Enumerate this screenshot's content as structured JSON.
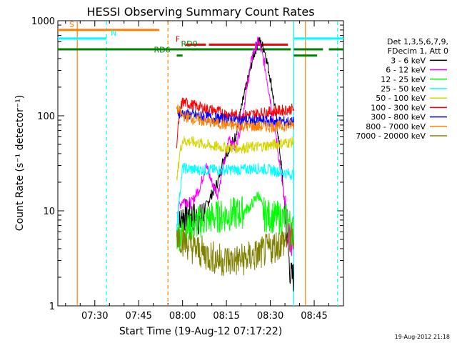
{
  "chart_data": {
    "type": "line",
    "title": "HESSI Observing Summary Count Rates",
    "xlabel": "Start Time (19-Aug-12 07:17:22)",
    "ylabel": "Count Rate (s⁻¹ detector⁻¹)",
    "yscale": "log",
    "xlim": [
      "07:17:22",
      "08:55:00"
    ],
    "ylim": [
      1,
      1000
    ],
    "x_ticks": [
      "07:30",
      "07:45",
      "08:00",
      "08:15",
      "08:30",
      "08:45"
    ],
    "y_ticks": [
      "1",
      "10",
      "100",
      "1000"
    ],
    "grid": false,
    "legend": {
      "position": "right",
      "header": [
        "Det 1,3,5,6,7,9,",
        "FDecim 1, Att 0"
      ],
      "entries": [
        {
          "label": "3 - 6 keV",
          "color": "#000000"
        },
        {
          "label": "6 - 12 keV",
          "color": "#ff00ff"
        },
        {
          "label": "12 - 25 keV",
          "color": "#00ff00"
        },
        {
          "label": "25 - 50 keV",
          "color": "#00ffff"
        },
        {
          "label": "50 - 100 keV",
          "color": "#d4d400"
        },
        {
          "label": "100 - 300 keV",
          "color": "#ff0000"
        },
        {
          "label": "300 - 800 keV",
          "color": "#0000ff"
        },
        {
          "label": "800 - 7000 keV",
          "color": "#ff8000"
        },
        {
          "label": "7000 - 20000 keV",
          "color": "#808000"
        }
      ]
    },
    "data_window": [
      "07:58",
      "08:38"
    ],
    "series": [
      {
        "name": "3 - 6 keV",
        "color": "#000000",
        "x": [
          "07:58",
          "08:00",
          "08:03",
          "08:06",
          "08:09",
          "08:12",
          "08:14",
          "08:18",
          "08:21",
          "08:24",
          "08:26",
          "08:28",
          "08:30",
          "08:32",
          "08:34",
          "08:36",
          "08:37",
          "08:38"
        ],
        "y": [
          6,
          9,
          9,
          8,
          13,
          20,
          35,
          60,
          160,
          400,
          630,
          500,
          250,
          100,
          25,
          4,
          2,
          2
        ]
      },
      {
        "name": "6 - 12 keV",
        "color": "#ff00ff",
        "x": [
          "07:58",
          "08:00",
          "08:03",
          "08:06",
          "08:08",
          "08:10",
          "08:12",
          "08:14",
          "08:16",
          "08:18",
          "08:20",
          "08:22",
          "08:24",
          "08:26",
          "08:28",
          "08:30",
          "08:32",
          "08:34",
          "08:36",
          "08:38"
        ],
        "y": [
          10,
          13,
          12,
          18,
          30,
          20,
          15,
          30,
          60,
          45,
          80,
          200,
          450,
          620,
          350,
          150,
          60,
          20,
          6,
          4
        ]
      },
      {
        "name": "12 - 25 keV",
        "color": "#00ff00",
        "x": [
          "07:58",
          "08:00",
          "08:05",
          "08:10",
          "08:15",
          "08:20",
          "08:23",
          "08:26",
          "08:28",
          "08:32",
          "08:36",
          "08:38"
        ],
        "y": [
          5.5,
          6,
          7.5,
          8.5,
          9,
          9.5,
          11,
          15,
          9,
          8.5,
          8,
          6
        ]
      },
      {
        "name": "25 - 50 keV",
        "color": "#00ffff",
        "x": [
          "07:58",
          "08:00",
          "08:05",
          "08:10",
          "08:15",
          "08:20",
          "08:25",
          "08:30",
          "08:35",
          "08:38"
        ],
        "y": [
          7.5,
          28,
          27,
          27,
          27,
          27,
          28,
          27,
          25,
          24
        ]
      },
      {
        "name": "50 - 100 keV",
        "color": "#d4d400",
        "x": [
          "07:58",
          "07:59",
          "08:00",
          "08:05",
          "08:10",
          "08:15",
          "08:20",
          "08:25",
          "08:30",
          "08:35",
          "08:38"
        ],
        "y": [
          20,
          40,
          55,
          52,
          48,
          46,
          46,
          47,
          49,
          52,
          53
        ]
      },
      {
        "name": "100 - 300 keV",
        "color": "#ff0000",
        "x": [
          "07:58",
          "07:59",
          "08:00",
          "08:05",
          "08:10",
          "08:15",
          "08:20",
          "08:25",
          "08:30",
          "08:35",
          "08:38"
        ],
        "y": [
          52,
          110,
          140,
          125,
          115,
          105,
          100,
          105,
          110,
          115,
          118
        ]
      },
      {
        "name": "300 - 800 keV",
        "color": "#0000ff",
        "x": [
          "07:58",
          "08:00",
          "08:05",
          "08:10",
          "08:15",
          "08:20",
          "08:25",
          "08:30",
          "08:35",
          "08:38"
        ],
        "y": [
          110,
          105,
          100,
          95,
          92,
          90,
          88,
          88,
          87,
          85
        ]
      },
      {
        "name": "800 - 7000 keV",
        "color": "#ff8000",
        "x": [
          "07:58",
          "08:00",
          "08:05",
          "08:10",
          "08:15",
          "08:20",
          "08:25",
          "08:30",
          "08:35",
          "08:38"
        ],
        "y": [
          120,
          100,
          90,
          85,
          80,
          78,
          77,
          77,
          78,
          80
        ]
      },
      {
        "name": "7000 - 20000 keV",
        "color": "#808000",
        "x": [
          "07:58",
          "08:00",
          "08:03",
          "08:06",
          "08:09",
          "08:12",
          "08:15",
          "08:18",
          "08:21",
          "08:24",
          "08:27",
          "08:30",
          "08:33",
          "08:36",
          "08:38"
        ],
        "y": [
          6,
          5,
          4.2,
          3.7,
          3.4,
          3.1,
          3,
          3,
          3.1,
          3.3,
          3.6,
          4,
          4.5,
          5,
          5.2
        ]
      }
    ],
    "flag_bars": [
      {
        "label": "S",
        "color": "#ff8000",
        "y": 800,
        "segments": [
          [
            "07:17:22",
            "07:52"
          ]
        ]
      },
      {
        "label": "N",
        "color": "#00ffff",
        "y": 650,
        "segments": [
          [
            "07:17:22",
            "07:34"
          ],
          [
            "08:38",
            "08:55"
          ]
        ]
      },
      {
        "label": "F",
        "color": "#ff0000",
        "y": 560,
        "segments": [
          [
            "08:01",
            "08:08"
          ],
          [
            "08:09",
            "08:36"
          ]
        ]
      },
      {
        "label": "RD0",
        "color": "#008000",
        "y": 500,
        "segments": [
          [
            "07:17:22",
            "08:37"
          ],
          [
            "08:38",
            "08:48"
          ],
          [
            "08:50",
            "08:55"
          ]
        ]
      },
      {
        "label": "RD6",
        "color": "#008000",
        "y": 430,
        "segments": [
          [
            "07:58",
            "08:00"
          ],
          [
            "08:38",
            "08:46"
          ]
        ]
      }
    ],
    "vertical_markers": [
      {
        "x": "07:24",
        "color": "#ff8000",
        "style": "solid"
      },
      {
        "x": "07:34",
        "color": "#00ffff",
        "style": "dashed"
      },
      {
        "x": "07:55",
        "color": "#ff8000",
        "style": "dashed"
      },
      {
        "x": "08:38",
        "color": "#00ffff",
        "style": "solid"
      },
      {
        "x": "08:42",
        "color": "#ff8000",
        "style": "solid"
      },
      {
        "x": "08:53",
        "color": "#00ffff",
        "style": "dashed"
      }
    ]
  },
  "footer": {
    "timestamp": "19-Aug-2012 21:18"
  }
}
